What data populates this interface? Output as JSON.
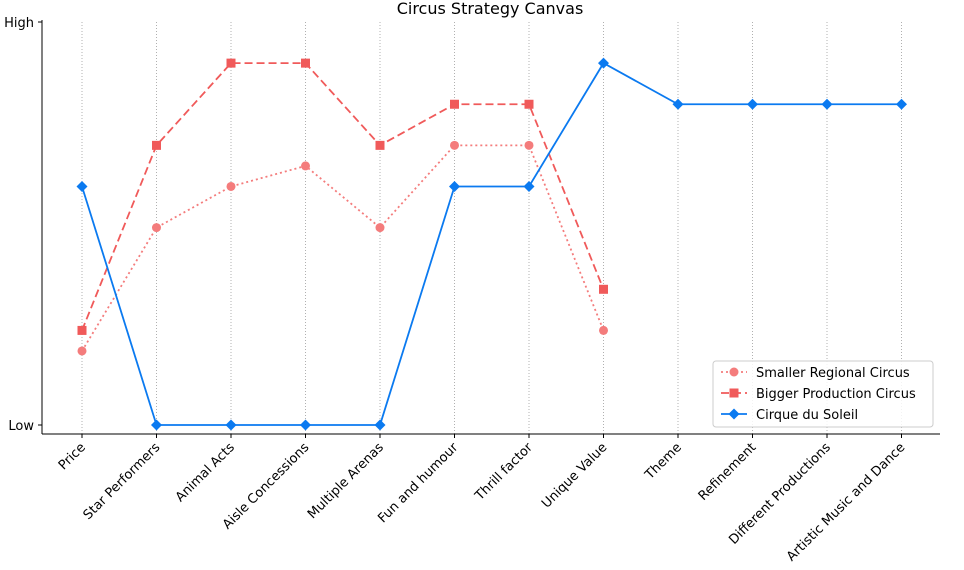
{
  "chart_data": {
    "type": "line",
    "title": "Circus Strategy Canvas",
    "xlabel": "",
    "ylabel": "",
    "ylim": [
      0,
      10
    ],
    "y_ticks": [
      {
        "value": 0.2,
        "label": "Low"
      },
      {
        "value": 10,
        "label": "High"
      }
    ],
    "grid": "vertical dotted",
    "legend_position": "lower-right",
    "categories": [
      "Price",
      "Star Performers",
      "Animal Acts",
      "Aisle Concessions",
      "Multiple Arenas",
      "Fun and humour",
      "Thrill factor",
      "Unique Value",
      "Theme",
      "Refinement",
      "Different Productions",
      "Artistic Music and Dance"
    ],
    "series": [
      {
        "name": "Smaller Regional Circus",
        "color": "#f47c7c",
        "line": "dotted",
        "marker": "circle",
        "values": [
          2,
          5,
          6,
          6.5,
          5,
          7,
          7,
          2.5,
          null,
          null,
          null,
          null
        ]
      },
      {
        "name": "Bigger Production Circus",
        "color": "#f05a5a",
        "line": "dashed",
        "marker": "square",
        "values": [
          2.5,
          7,
          9,
          9,
          7,
          8,
          8,
          3.5,
          null,
          null,
          null,
          null
        ]
      },
      {
        "name": "Cirque du Soleil",
        "color": "#0b7af0",
        "line": "solid",
        "marker": "diamond",
        "values": [
          6,
          0.2,
          0.2,
          0.2,
          0.2,
          6,
          6,
          9,
          8,
          8,
          8,
          8
        ]
      }
    ]
  }
}
